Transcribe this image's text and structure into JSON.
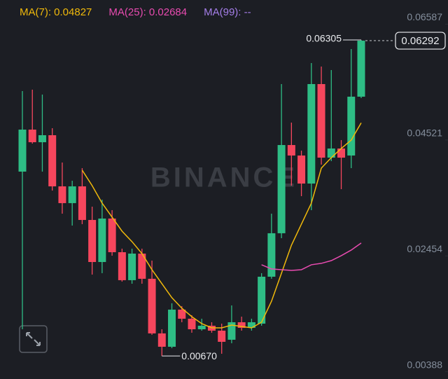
{
  "chart_data": {
    "type": "candlestick",
    "watermark": "BINANCE",
    "bull_color": "#2ebd85",
    "bear_color": "#f6465d",
    "ylim": [
      0.00259,
      0.07017
    ],
    "yticks": [
      0.06587,
      0.04521,
      0.02454,
      0.00388
    ],
    "candles": {
      "open": [
        0.03957,
        0.04706,
        0.04481,
        0.04606,
        0.03694,
        0.03395,
        0.03694,
        0.03095,
        0.02345,
        0.0312,
        0.0252,
        0.02021,
        0.02495,
        0.02046,
        0.01072,
        0.00834,
        0.01496,
        0.01334,
        0.01146,
        0.01209,
        0.01121,
        0.00959,
        0.01271,
        0.01171,
        0.01246,
        0.02083,
        0.02858,
        0.04431,
        0.04244,
        0.03744,
        0.05518,
        0.04206,
        0.04369,
        0.04244,
        0.05293
      ],
      "high": [
        0.05393,
        0.05418,
        0.05331,
        0.04731,
        0.04119,
        0.03794,
        0.04019,
        0.03332,
        0.03457,
        0.0327,
        0.02583,
        0.02583,
        0.02583,
        0.0237,
        0.01146,
        0.01609,
        0.01559,
        0.01396,
        0.01334,
        0.01271,
        0.01246,
        0.01571,
        0.01371,
        0.01334,
        0.02146,
        0.03207,
        0.05518,
        0.04831,
        0.04331,
        0.05893,
        0.0583,
        0.05768,
        0.04519,
        0.06142,
        0.06305
      ],
      "low": [
        0.01146,
        0.04456,
        0.03957,
        0.03619,
        0.03207,
        0.02995,
        0.0302,
        0.02121,
        0.02146,
        0.02458,
        0.01996,
        0.01958,
        0.01958,
        0.01047,
        0.0067,
        0.00809,
        0.01271,
        0.01084,
        0.01121,
        0.01084,
        0.00709,
        0.00897,
        0.01121,
        0.01121,
        0.01209,
        0.02046,
        0.0277,
        0.03707,
        0.03519,
        0.0327,
        0.04082,
        0.04144,
        0.03644,
        0.04019,
        0.05268
      ],
      "close": [
        0.04706,
        0.04481,
        0.04606,
        0.03694,
        0.03395,
        0.03694,
        0.03095,
        0.02345,
        0.0312,
        0.0252,
        0.02021,
        0.02495,
        0.02046,
        0.01072,
        0.00834,
        0.01496,
        0.01334,
        0.01146,
        0.01209,
        0.01121,
        0.00922,
        0.01271,
        0.01171,
        0.01271,
        0.02083,
        0.02858,
        0.04431,
        0.04244,
        0.03744,
        0.05518,
        0.04206,
        0.04369,
        0.04206,
        0.05293,
        0.06292
      ]
    },
    "series": [
      {
        "name": "MA(7): 0.04827",
        "color": "#f0b90b",
        "values": [
          null,
          null,
          null,
          null,
          null,
          null,
          0.03982,
          0.03707,
          0.03395,
          0.03145,
          0.02895,
          0.02708,
          0.02495,
          0.02208,
          0.01958,
          0.01709,
          0.01521,
          0.01371,
          0.01246,
          0.01171,
          0.01171,
          0.01221,
          0.01196,
          0.01171,
          0.01271,
          0.01646,
          0.02146,
          0.02645,
          0.0302,
          0.03395,
          0.04019,
          0.04206,
          0.04369,
          0.04519,
          0.04827
        ]
      },
      {
        "name": "MA(25): 0.02684",
        "color": "#e84bb0",
        "values": [
          null,
          null,
          null,
          null,
          null,
          null,
          null,
          null,
          null,
          null,
          null,
          null,
          null,
          null,
          null,
          null,
          null,
          null,
          null,
          null,
          null,
          null,
          null,
          null,
          0.02296,
          0.02221,
          0.02208,
          0.02196,
          0.02208,
          0.02296,
          0.02321,
          0.0237,
          0.02458,
          0.02558,
          0.02684
        ]
      },
      {
        "name": "MA(99): --",
        "color": "#a47ee8",
        "values": [
          null,
          null,
          null,
          null,
          null,
          null,
          null,
          null,
          null,
          null,
          null,
          null,
          null,
          null,
          null,
          null,
          null,
          null,
          null,
          null,
          null,
          null,
          null,
          null,
          null,
          null,
          null,
          null,
          null,
          null,
          null,
          null,
          null,
          null,
          null
        ]
      }
    ],
    "high_marker": 0.06305,
    "low_marker": {
      "value": 0.0067,
      "label": "0.00670"
    },
    "last_price": 0.06292
  }
}
